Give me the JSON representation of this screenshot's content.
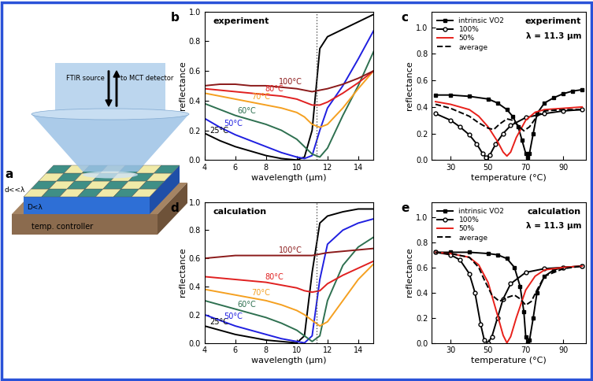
{
  "diagram": {
    "panel_label": "a",
    "labels": {
      "source": "FTIR source",
      "detector": "to MCT detector",
      "film_thickness": "d<<λ",
      "spacer_thickness": "D<λ",
      "stage": "temp. controller"
    }
  },
  "chart_data": [
    {
      "panel_label": "b",
      "type": "line",
      "title": "experiment",
      "x_label": "wavelength (µm)",
      "y_label": "reflectance",
      "xlim": [
        4,
        15
      ],
      "xticks": [
        4,
        6,
        8,
        10,
        12,
        14
      ],
      "ylim": [
        0,
        1.0
      ],
      "yticks": [
        {
          "value": 0,
          "label": "0.0"
        },
        0.2,
        0.4,
        0.6,
        0.8,
        {
          "value": 1.0,
          "label": "1.0"
        }
      ],
      "reference_line": {
        "x": 11.3,
        "line_style": "dotted"
      },
      "x": [
        4,
        5,
        6,
        7,
        8,
        9,
        10,
        10.5,
        11,
        11.5,
        12,
        13,
        14,
        15
      ],
      "series": [
        {
          "name": "25°C",
          "color": "#000000",
          "values": [
            0.18,
            0.13,
            0.09,
            0.06,
            0.03,
            0.01,
            0.0,
            0.02,
            0.2,
            0.75,
            0.83,
            0.88,
            0.93,
            0.98
          ]
        },
        {
          "name": "50°C",
          "color": "#1f1fe0",
          "values": [
            0.28,
            0.22,
            0.17,
            0.13,
            0.09,
            0.05,
            0.02,
            0.01,
            0.03,
            0.2,
            0.35,
            0.5,
            0.68,
            0.87
          ]
        },
        {
          "name": "60°C",
          "color": "#2e7050",
          "values": [
            0.38,
            0.34,
            0.3,
            0.27,
            0.24,
            0.2,
            0.14,
            0.09,
            0.04,
            0.02,
            0.08,
            0.3,
            0.5,
            0.73
          ]
        },
        {
          "name": "70°C",
          "color": "#f5a020",
          "values": [
            0.45,
            0.43,
            0.41,
            0.39,
            0.37,
            0.35,
            0.32,
            0.29,
            0.24,
            0.22,
            0.24,
            0.35,
            0.48,
            0.6
          ]
        },
        {
          "name": "80°C",
          "color": "#e02020",
          "values": [
            0.48,
            0.47,
            0.46,
            0.45,
            0.44,
            0.43,
            0.41,
            0.39,
            0.37,
            0.37,
            0.39,
            0.45,
            0.52,
            0.6
          ]
        },
        {
          "name": "100°C",
          "color": "#8b1a1a",
          "values": [
            0.5,
            0.51,
            0.51,
            0.5,
            0.5,
            0.49,
            0.48,
            0.47,
            0.46,
            0.47,
            0.48,
            0.51,
            0.55,
            0.6
          ]
        }
      ]
    },
    {
      "panel_label": "c",
      "type": "line",
      "title": "experiment",
      "subtitle": "λ = 11.3 µm",
      "x_label": "temperature (°C)",
      "y_label": "reflectance",
      "xlim": [
        20,
        102
      ],
      "xticks": [
        30,
        50,
        70,
        90
      ],
      "ylim": [
        0,
        1.12
      ],
      "yticks": [
        {
          "value": 0,
          "label": "0.0"
        },
        0.2,
        0.4,
        0.6,
        0.8,
        {
          "value": 1.0,
          "label": "1.0"
        }
      ],
      "legend": "upper left",
      "series": [
        {
          "name": "intrinsic VO2",
          "color": "#000000",
          "marker": "square",
          "line_style": "solid",
          "x": [
            22,
            30,
            40,
            50,
            55,
            60,
            63,
            66,
            68,
            70,
            71,
            72,
            74,
            76,
            80,
            85,
            90,
            95,
            100
          ],
          "values": [
            0.49,
            0.49,
            0.48,
            0.46,
            0.43,
            0.38,
            0.33,
            0.25,
            0.15,
            0.05,
            0.02,
            0.05,
            0.2,
            0.35,
            0.43,
            0.47,
            0.5,
            0.52,
            0.53
          ]
        },
        {
          "name": "100%",
          "color": "#000000",
          "marker": "open_circle",
          "line_style": "solid",
          "x": [
            22,
            30,
            35,
            40,
            44,
            47,
            49,
            51,
            54,
            58,
            62,
            70,
            80,
            90,
            100
          ],
          "values": [
            0.35,
            0.3,
            0.25,
            0.19,
            0.12,
            0.05,
            0.02,
            0.04,
            0.12,
            0.2,
            0.26,
            0.32,
            0.35,
            0.37,
            0.38
          ]
        },
        {
          "name": "50%",
          "color": "#e8201a",
          "line_style": "solid",
          "x": [
            22,
            30,
            40,
            45,
            50,
            55,
            58,
            60,
            62,
            65,
            70,
            75,
            80,
            90,
            100
          ],
          "values": [
            0.44,
            0.42,
            0.38,
            0.33,
            0.25,
            0.14,
            0.06,
            0.03,
            0.06,
            0.17,
            0.3,
            0.36,
            0.38,
            0.39,
            0.4
          ]
        },
        {
          "name": "average",
          "color": "#000000",
          "line_style": "dashed",
          "x": [
            22,
            30,
            40,
            45,
            50,
            53,
            56,
            60,
            63,
            66,
            69,
            72,
            76,
            80,
            90,
            100
          ],
          "values": [
            0.42,
            0.39,
            0.33,
            0.28,
            0.24,
            0.23,
            0.27,
            0.31,
            0.3,
            0.26,
            0.22,
            0.25,
            0.33,
            0.37,
            0.38,
            0.38
          ]
        }
      ]
    },
    {
      "panel_label": "d",
      "type": "line",
      "title": "calculation",
      "x_label": "wavelength (µm)",
      "y_label": "reflectance",
      "xlim": [
        4,
        15
      ],
      "xticks": [
        4,
        6,
        8,
        10,
        12,
        14
      ],
      "ylim": [
        0,
        1.0
      ],
      "yticks": [
        {
          "value": 0,
          "label": "0.0"
        },
        0.2,
        0.4,
        0.6,
        0.8,
        {
          "value": 1.0,
          "label": "1.0"
        }
      ],
      "reference_line": {
        "x": 11.3,
        "line_style": "dotted"
      },
      "x": [
        4,
        5,
        6,
        7,
        8,
        9,
        10,
        10.5,
        11,
        11.5,
        12,
        13,
        14,
        15
      ],
      "series": [
        {
          "name": "25°C",
          "color": "#000000",
          "values": [
            0.12,
            0.09,
            0.06,
            0.04,
            0.02,
            0.01,
            0.0,
            0.05,
            0.5,
            0.85,
            0.9,
            0.93,
            0.95,
            0.95
          ]
        },
        {
          "name": "50°C",
          "color": "#1f1fe0",
          "values": [
            0.2,
            0.16,
            0.12,
            0.09,
            0.06,
            0.03,
            0.01,
            0.0,
            0.05,
            0.45,
            0.7,
            0.8,
            0.85,
            0.88
          ]
        },
        {
          "name": "60°C",
          "color": "#2e7050",
          "values": [
            0.3,
            0.27,
            0.24,
            0.21,
            0.18,
            0.14,
            0.09,
            0.05,
            0.01,
            0.05,
            0.3,
            0.55,
            0.68,
            0.75
          ]
        },
        {
          "name": "70°C",
          "color": "#f5a020",
          "values": [
            0.38,
            0.36,
            0.34,
            0.32,
            0.3,
            0.27,
            0.23,
            0.2,
            0.16,
            0.12,
            0.15,
            0.3,
            0.45,
            0.56
          ]
        },
        {
          "name": "80°C",
          "color": "#e02020",
          "values": [
            0.47,
            0.46,
            0.45,
            0.44,
            0.43,
            0.41,
            0.39,
            0.37,
            0.36,
            0.37,
            0.42,
            0.48,
            0.53,
            0.58
          ]
        },
        {
          "name": "100°C",
          "color": "#8b1a1a",
          "values": [
            0.6,
            0.61,
            0.62,
            0.62,
            0.62,
            0.62,
            0.62,
            0.62,
            0.62,
            0.63,
            0.64,
            0.65,
            0.66,
            0.67
          ]
        }
      ]
    },
    {
      "panel_label": "e",
      "type": "line",
      "title": "calculation",
      "subtitle": "λ = 11.3 µm",
      "x_label": "temperature (°C)",
      "y_label": "reflectance",
      "xlim": [
        20,
        102
      ],
      "xticks": [
        30,
        50,
        70,
        90
      ],
      "ylim": [
        0,
        1.12
      ],
      "yticks": [
        {
          "value": 0,
          "label": "0.0"
        },
        0.2,
        0.4,
        0.6,
        0.8,
        {
          "value": 1.0,
          "label": "1.0"
        }
      ],
      "legend": "upper left",
      "series": [
        {
          "name": "intrinsic VO2",
          "color": "#000000",
          "marker": "square",
          "line_style": "solid",
          "x": [
            22,
            30,
            40,
            50,
            55,
            60,
            64,
            67,
            69,
            70,
            71,
            72,
            74,
            76,
            80,
            85,
            90,
            100
          ],
          "values": [
            0.72,
            0.72,
            0.72,
            0.71,
            0.7,
            0.67,
            0.6,
            0.45,
            0.25,
            0.05,
            0.0,
            0.02,
            0.2,
            0.4,
            0.53,
            0.58,
            0.6,
            0.61
          ]
        },
        {
          "name": "100%",
          "color": "#000000",
          "marker": "open_circle",
          "line_style": "solid",
          "x": [
            22,
            30,
            35,
            40,
            43,
            46,
            48,
            50,
            52,
            55,
            58,
            62,
            70,
            80,
            90,
            100
          ],
          "values": [
            0.72,
            0.7,
            0.66,
            0.55,
            0.4,
            0.15,
            0.02,
            0.0,
            0.05,
            0.2,
            0.35,
            0.47,
            0.56,
            0.59,
            0.6,
            0.61
          ]
        },
        {
          "name": "50%",
          "color": "#e8201a",
          "line_style": "solid",
          "x": [
            22,
            30,
            40,
            45,
            50,
            55,
            58,
            60,
            62,
            65,
            70,
            75,
            80,
            90,
            100
          ],
          "values": [
            0.72,
            0.71,
            0.68,
            0.62,
            0.48,
            0.22,
            0.06,
            0.0,
            0.05,
            0.2,
            0.42,
            0.53,
            0.58,
            0.6,
            0.61
          ]
        },
        {
          "name": "average",
          "color": "#000000",
          "line_style": "dashed",
          "x": [
            22,
            30,
            40,
            45,
            48,
            52,
            56,
            60,
            64,
            67,
            70,
            73,
            76,
            80,
            90,
            100
          ],
          "values": [
            0.72,
            0.71,
            0.68,
            0.6,
            0.5,
            0.38,
            0.33,
            0.36,
            0.38,
            0.35,
            0.3,
            0.33,
            0.42,
            0.53,
            0.59,
            0.61
          ]
        }
      ]
    }
  ]
}
